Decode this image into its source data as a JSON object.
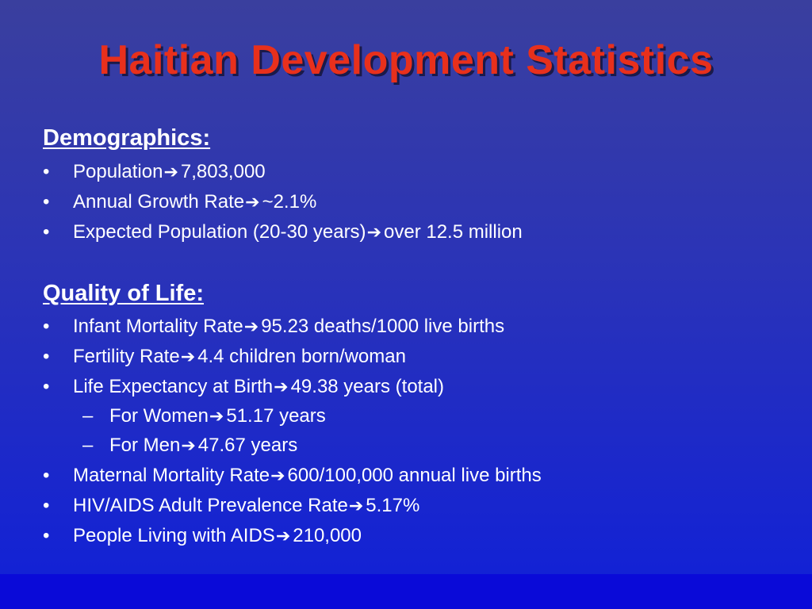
{
  "title": "Haitian Development Statistics",
  "colors": {
    "title": "#e8301c",
    "background_top": "#3a3f9e",
    "background_bottom": "#1020d8",
    "text": "#ffffff"
  },
  "icons": {
    "arrow": "right-arrow-icon"
  },
  "sections": [
    {
      "heading": "Demographics:",
      "items": [
        {
          "bullet": "•",
          "label": "Population",
          "value": "7,803,000"
        },
        {
          "bullet": "•",
          "label": "Annual Growth Rate",
          "value": "~2.1%"
        },
        {
          "bullet": "•",
          "label": "Expected Population (20-30 years)",
          "value": "over 12.5 million"
        }
      ]
    },
    {
      "heading": "Quality of Life:",
      "items": [
        {
          "bullet": "•",
          "label": "Infant Mortality Rate",
          "value": "95.23 deaths/1000 live births"
        },
        {
          "bullet": "•",
          "label": "Fertility Rate",
          "value": "4.4 children born/woman"
        },
        {
          "bullet": "•",
          "label": "Life Expectancy at Birth",
          "value": "49.38 years (total)"
        },
        {
          "bullet": "–",
          "label": "For Women",
          "value": "51.17 years"
        },
        {
          "bullet": "–",
          "label": "For Men",
          "value": "47.67 years"
        },
        {
          "bullet": "•",
          "label": "Maternal Mortality Rate",
          "value": "600/100,000 annual live births"
        },
        {
          "bullet": "•",
          "label": "HIV/AIDS Adult Prevalence Rate",
          "value": "5.17%"
        },
        {
          "bullet": "•",
          "label": "People Living with AIDS",
          "value": "210,000"
        }
      ]
    }
  ]
}
